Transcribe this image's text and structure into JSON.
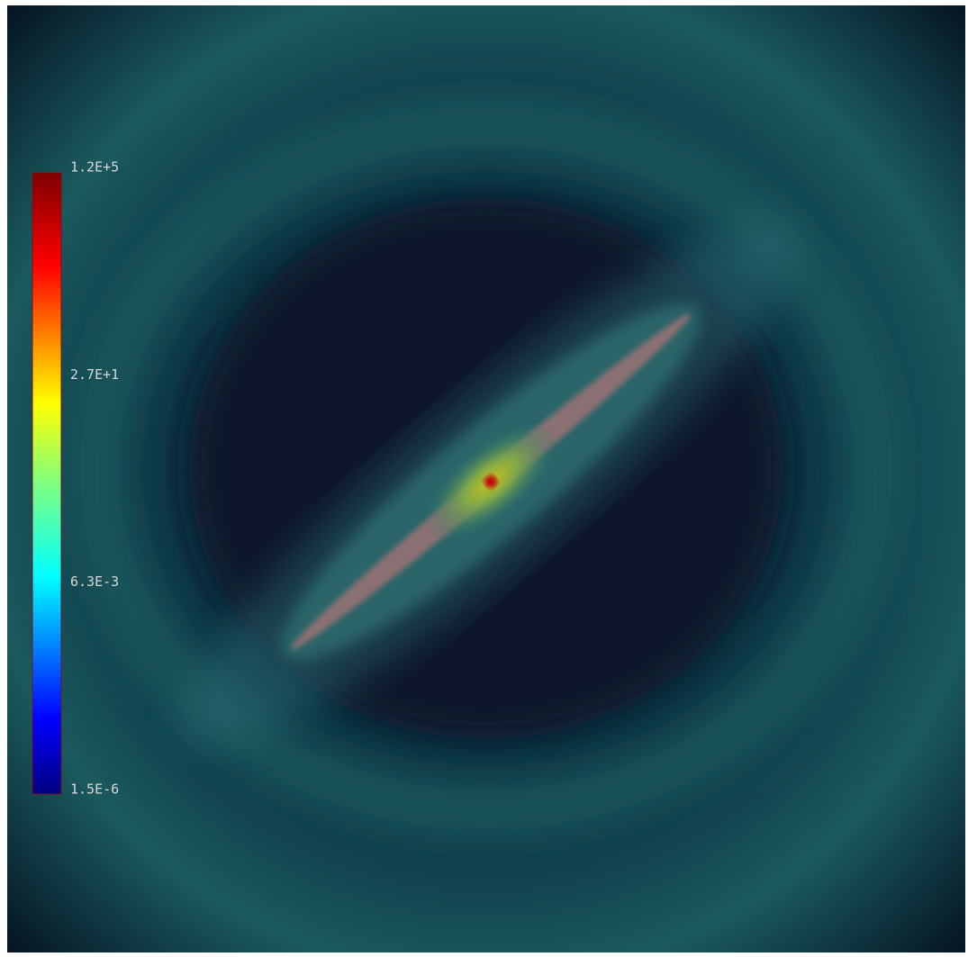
{
  "colorbar": {
    "labels": [
      "1.2E+5",
      "2.7E+1",
      "6.3E-3",
      "1.5E-6"
    ]
  }
}
